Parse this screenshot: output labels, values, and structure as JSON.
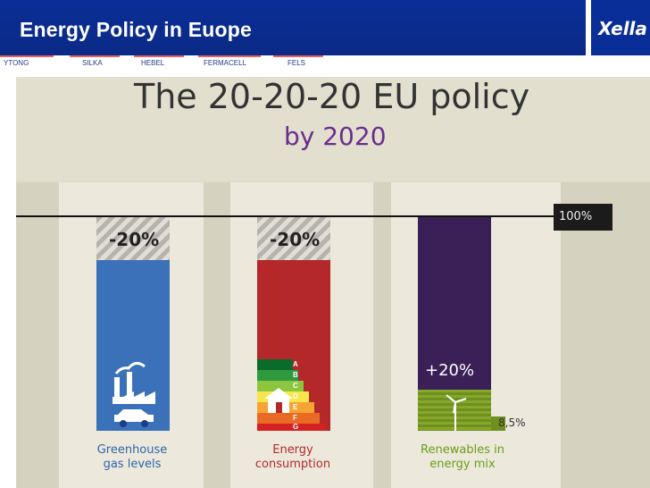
{
  "header": {
    "title": "Energy Policy in Euope",
    "logo": "Xella"
  },
  "brands": [
    "YTONG",
    "SILKA",
    "HEBEL",
    "FERMACELL",
    "FELS"
  ],
  "slide": {
    "headline": "The 20-20-20 EU policy",
    "subhead": "by 2020",
    "reference": "100%",
    "bars": [
      {
        "hatch_label": "-20%",
        "caption_line1": "Greenhouse",
        "caption_line2": "gas levels"
      },
      {
        "hatch_label": "-20%",
        "caption_line1": "Energy",
        "caption_line2": "consumption"
      },
      {
        "bar_label": "+20%",
        "value_label": "8,5%",
        "caption_line1": "Renewables in",
        "caption_line2": "energy mix"
      }
    ],
    "energy_scale": [
      "A",
      "B",
      "C",
      "D",
      "E",
      "F",
      "G"
    ]
  },
  "chart_data": {
    "type": "bar",
    "title": "The 20-20-20 EU policy by 2020",
    "categories": [
      "Greenhouse gas levels",
      "Energy consumption",
      "Renewables in energy mix"
    ],
    "values": [
      -20,
      -20,
      20
    ],
    "unit": "%",
    "reference": 100,
    "annotations": [
      "8,5%"
    ]
  },
  "colors": {
    "header": "#0a2e98",
    "greenhouse": "#3a71b9",
    "consumption": "#b4282a",
    "renewables": "#3b1f57",
    "renewables_target": "#75961f",
    "caption_green": "#6a9c19",
    "caption_red": "#b4282a",
    "caption_blue": "#2d64a8"
  }
}
